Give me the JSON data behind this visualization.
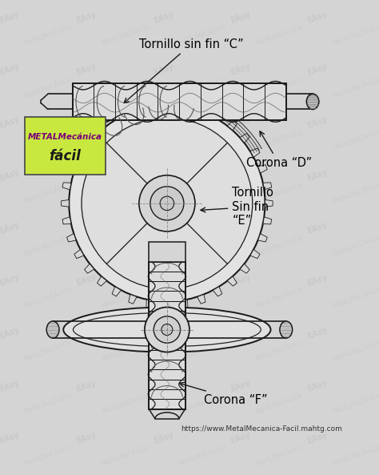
{
  "bg_color": "#d4d4d4",
  "line_color": "#1a1a1a",
  "logo_bg": "#c8e840",
  "logo_text_color": "#7b007b",
  "logo_text2_color": "#1a1a1a",
  "title_label": "Tornillo sin fin “C”",
  "label_corona_d": "Corona “D”",
  "label_tornillo_e": "Tornillo\nSin fin\n“E”",
  "label_corona_f": "Corona “F”",
  "url_text": "https://www.MetalMecanica-Facil.mahtg.com",
  "font_size_labels": 10.5,
  "font_size_url": 6.5,
  "wm_color": "#c0c0c0"
}
